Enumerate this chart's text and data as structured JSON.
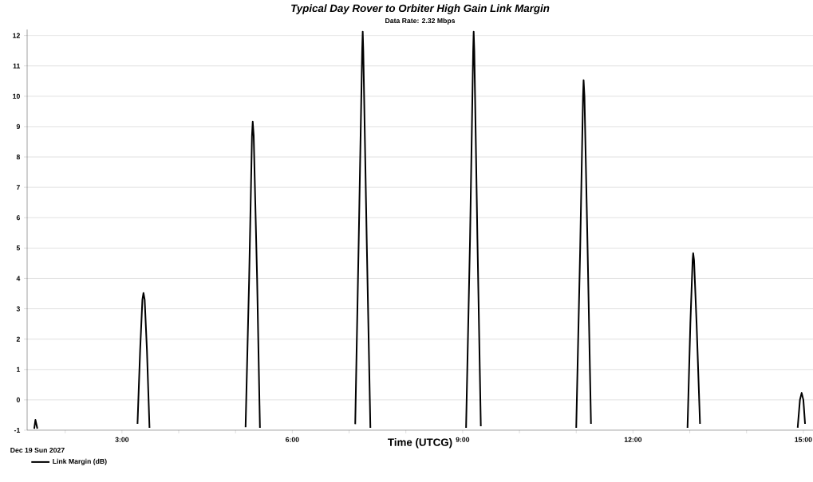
{
  "chart_data": {
    "type": "line",
    "title": "Typical Day Rover to Orbiter High Gain Link Margin",
    "subtitle": "Data Rate: 2.32 Mbps",
    "xlabel": "Time (UTCG)",
    "annotations": [
      "Dec 19 Sun 2027"
    ],
    "xlim": [
      1.33,
      15.17
    ],
    "xticks": [
      {
        "value": 2,
        "label": null
      },
      {
        "value": 3,
        "label": "3:00"
      },
      {
        "value": 4,
        "label": null
      },
      {
        "value": 5,
        "label": null
      },
      {
        "value": 6,
        "label": "6:00"
      },
      {
        "value": 7,
        "label": null
      },
      {
        "value": 8,
        "label": null
      },
      {
        "value": 9,
        "label": "9:00"
      },
      {
        "value": 10,
        "label": null
      },
      {
        "value": 11,
        "label": null
      },
      {
        "value": 12,
        "label": "12:00"
      },
      {
        "value": 13,
        "label": null
      },
      {
        "value": 14,
        "label": null
      },
      {
        "value": 15,
        "label": "15:00"
      }
    ],
    "ylim": [
      -1,
      12.2
    ],
    "yticks": [
      -1,
      0,
      1,
      2,
      3,
      4,
      5,
      6,
      7,
      8,
      9,
      10,
      11,
      12
    ],
    "grid": "y",
    "legend": "bottom left",
    "marker": "none",
    "line_style": "solid",
    "series": [
      {
        "name": "Link Margin (dB)",
        "color": "#000000",
        "x": [
          1.455,
          1.476,
          1.51,
          2.5,
          3.274,
          3.32,
          3.36,
          3.379,
          3.4,
          3.44,
          3.485,
          4.3,
          5.177,
          5.24,
          5.29,
          5.303,
          5.32,
          5.38,
          5.43,
          6.3,
          7.108,
          7.17,
          7.23,
          7.24,
          7.25,
          7.31,
          7.375,
          8.2,
          9.06,
          9.13,
          9.185,
          9.194,
          9.205,
          9.26,
          9.32,
          10.2,
          11.0,
          11.07,
          11.12,
          11.13,
          11.145,
          11.2,
          11.26,
          12.1,
          12.96,
          13.01,
          13.05,
          13.06,
          13.075,
          13.12,
          13.18,
          14.0,
          14.9,
          14.94,
          14.97,
          15.0,
          15.03
        ],
        "values": [
          -0.95,
          -0.66,
          -0.95,
          null,
          -0.79,
          1.63,
          3.3,
          3.52,
          3.3,
          1.63,
          -0.92,
          null,
          -0.9,
          4.0,
          8.7,
          9.16,
          8.7,
          4.0,
          -0.92,
          null,
          -0.8,
          5.3,
          11.5,
          12.13,
          11.5,
          5.3,
          -0.92,
          null,
          -0.92,
          5.3,
          11.5,
          12.13,
          11.5,
          5.3,
          -0.87,
          null,
          -0.92,
          5.0,
          10.0,
          10.53,
          10.0,
          5.0,
          -0.79,
          null,
          -0.92,
          2.5,
          4.6,
          4.83,
          4.6,
          2.5,
          -0.79,
          null,
          -0.92,
          0.0,
          0.23,
          0.0,
          -0.79
        ]
      }
    ]
  }
}
